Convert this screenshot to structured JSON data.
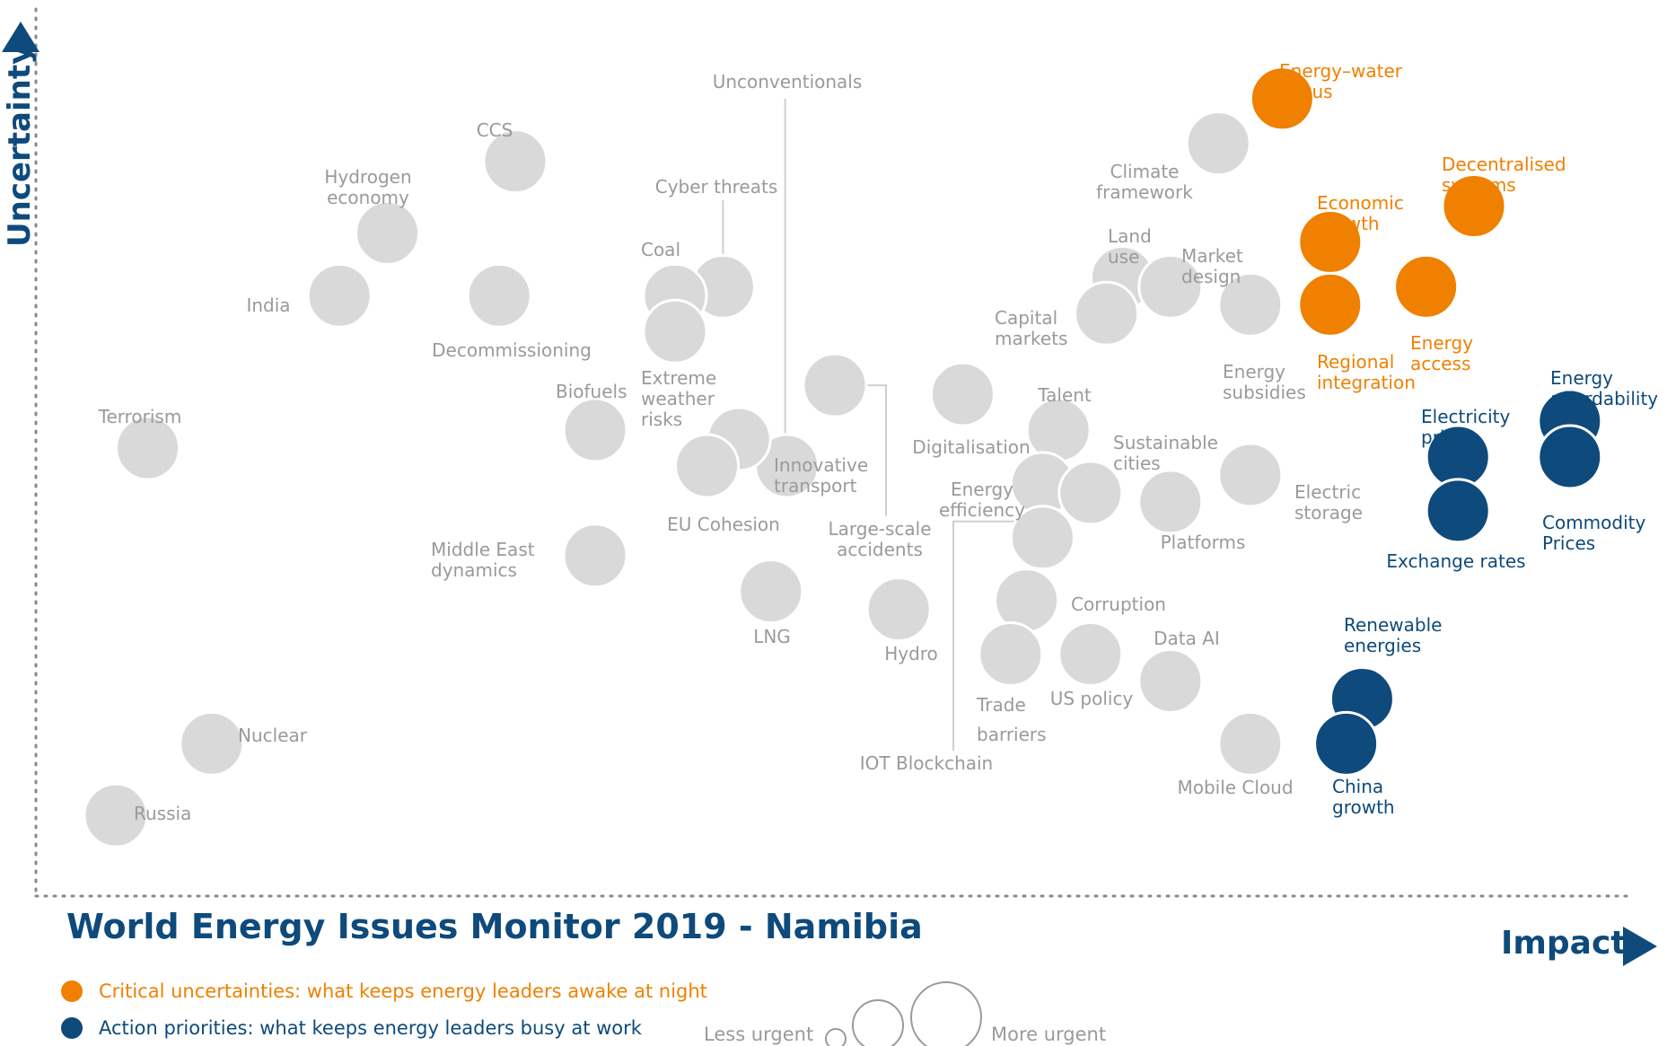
{
  "chart_data": {
    "type": "scatter",
    "title": "World Energy Issues Monitor 2019 - Namibia",
    "xlabel": "Impact",
    "ylabel": "Uncertainty",
    "legend": {
      "critical": "Critical uncertainties: what keeps energy leaders awake at night",
      "action": "Action priorities: what keeps energy leaders busy at work",
      "less_urgent": "Less urgent",
      "more_urgent": "More urgent"
    },
    "colors": {
      "critical": "#ef8000",
      "action": "#0e4a7c",
      "other": "#d9d9d9",
      "label_other": "#9a9a9a",
      "axis": "#0e4a7c"
    },
    "points": [
      {
        "name": "Unconventionals",
        "x": 0.47,
        "y": 0.48,
        "group": "other"
      },
      {
        "name": "CCS",
        "x": 0.3,
        "y": 0.82,
        "group": "other"
      },
      {
        "name": "Hydrogen economy",
        "x": 0.22,
        "y": 0.74,
        "group": "other"
      },
      {
        "name": "India",
        "x": 0.19,
        "y": 0.67,
        "group": "other"
      },
      {
        "name": "Decommissioning",
        "x": 0.29,
        "y": 0.67,
        "group": "other"
      },
      {
        "name": "Cyber threats",
        "x": 0.43,
        "y": 0.68,
        "group": "other"
      },
      {
        "name": "Coal",
        "x": 0.4,
        "y": 0.67,
        "group": "other"
      },
      {
        "name": "Extreme weather risks",
        "x": 0.4,
        "y": 0.63,
        "group": "other"
      },
      {
        "name": "Biofuels",
        "x": 0.35,
        "y": 0.52,
        "group": "other"
      },
      {
        "name": "Terrorism",
        "x": 0.07,
        "y": 0.5,
        "group": "other"
      },
      {
        "name": "Middle East dynamics",
        "x": 0.35,
        "y": 0.38,
        "group": "other"
      },
      {
        "name": "Innovative transport",
        "x": 0.44,
        "y": 0.51,
        "group": "other"
      },
      {
        "name": "EU Cohesion",
        "x": 0.42,
        "y": 0.48,
        "group": "other"
      },
      {
        "name": "Large-scale accidents",
        "x": 0.5,
        "y": 0.57,
        "group": "other"
      },
      {
        "name": "LNG",
        "x": 0.46,
        "y": 0.34,
        "group": "other"
      },
      {
        "name": "Hydro",
        "x": 0.54,
        "y": 0.32,
        "group": "other"
      },
      {
        "name": "Digitalisation",
        "x": 0.58,
        "y": 0.56,
        "group": "other"
      },
      {
        "name": "Talent",
        "x": 0.64,
        "y": 0.52,
        "group": "other"
      },
      {
        "name": "Energy efficiency",
        "x": 0.63,
        "y": 0.46,
        "group": "other"
      },
      {
        "name": "Sustainable cities",
        "x": 0.66,
        "y": 0.45,
        "group": "other"
      },
      {
        "name": "IOT Blockchain",
        "x": 0.63,
        "y": 0.4,
        "group": "other"
      },
      {
        "name": "Corruption",
        "x": 0.62,
        "y": 0.33,
        "group": "other"
      },
      {
        "name": "Trade barriers",
        "x": 0.61,
        "y": 0.27,
        "group": "other"
      },
      {
        "name": "US policy",
        "x": 0.66,
        "y": 0.27,
        "group": "other"
      },
      {
        "name": "Data AI",
        "x": 0.71,
        "y": 0.24,
        "group": "other"
      },
      {
        "name": "Mobile Cloud",
        "x": 0.76,
        "y": 0.17,
        "group": "other"
      },
      {
        "name": "Platforms",
        "x": 0.71,
        "y": 0.44,
        "group": "other"
      },
      {
        "name": "Electric storage",
        "x": 0.76,
        "y": 0.47,
        "group": "other"
      },
      {
        "name": "Climate framework",
        "x": 0.74,
        "y": 0.84,
        "group": "other"
      },
      {
        "name": "Land use",
        "x": 0.68,
        "y": 0.69,
        "group": "other"
      },
      {
        "name": "Market design",
        "x": 0.71,
        "y": 0.68,
        "group": "other"
      },
      {
        "name": "Capital markets",
        "x": 0.67,
        "y": 0.65,
        "group": "other"
      },
      {
        "name": "Energy subsidies",
        "x": 0.76,
        "y": 0.66,
        "group": "other"
      },
      {
        "name": "Nuclear",
        "x": 0.11,
        "y": 0.17,
        "group": "other"
      },
      {
        "name": "Russia",
        "x": 0.05,
        "y": 0.09,
        "group": "other"
      },
      {
        "name": "Energy-water nexus",
        "x": 0.78,
        "y": 0.89,
        "group": "critical"
      },
      {
        "name": "Economic growth",
        "x": 0.81,
        "y": 0.73,
        "group": "critical"
      },
      {
        "name": "Regional integration",
        "x": 0.81,
        "y": 0.66,
        "group": "critical"
      },
      {
        "name": "Decentralised systems",
        "x": 0.9,
        "y": 0.77,
        "group": "critical"
      },
      {
        "name": "Energy access",
        "x": 0.87,
        "y": 0.68,
        "group": "critical"
      },
      {
        "name": "Electricity prices",
        "x": 0.89,
        "y": 0.49,
        "group": "action"
      },
      {
        "name": "Exchange rates",
        "x": 0.89,
        "y": 0.43,
        "group": "action"
      },
      {
        "name": "Energy affordability",
        "x": 0.96,
        "y": 0.53,
        "group": "action"
      },
      {
        "name": "Commodity Prices",
        "x": 0.96,
        "y": 0.49,
        "group": "action"
      },
      {
        "name": "Renewable energies",
        "x": 0.83,
        "y": 0.22,
        "group": "action"
      },
      {
        "name": "China growth",
        "x": 0.82,
        "y": 0.17,
        "group": "action"
      }
    ]
  }
}
